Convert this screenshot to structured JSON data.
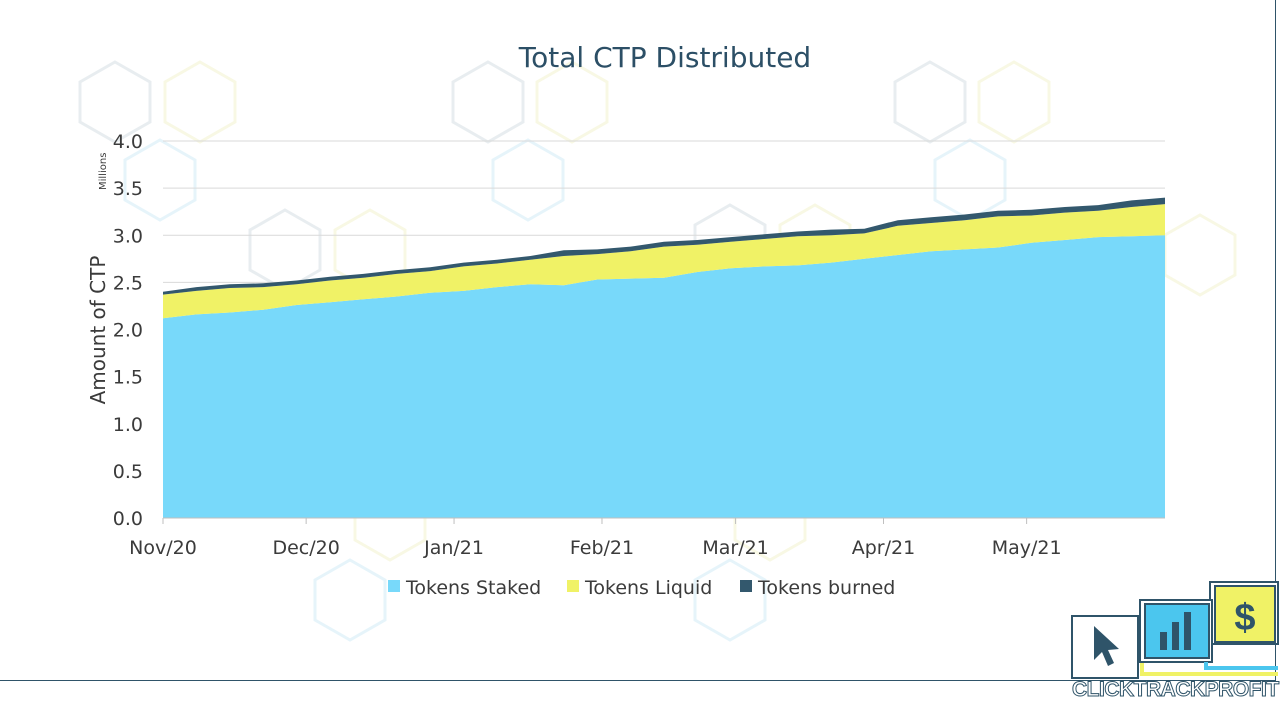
{
  "chart_data": {
    "type": "area",
    "title": "Total CTP Distributed",
    "ylabel": "Amount of CTP",
    "yunits": "Millions",
    "ylim": [
      0,
      4.0
    ],
    "yticks": [
      "0.0",
      "0.5",
      "1.0",
      "1.5",
      "2.0",
      "2.5",
      "3.0",
      "3.5",
      "4.0"
    ],
    "xticks": [
      "Nov/20",
      "Dec/20",
      "Jan/21",
      "Feb/21",
      "Mar/21",
      "Apr/21",
      "May/21"
    ],
    "stacked": true,
    "grid": true,
    "legend_position": "bottom",
    "x": [
      "2020-11-01",
      "2020-11-08",
      "2020-11-15",
      "2020-11-22",
      "2020-11-29",
      "2020-12-06",
      "2020-12-13",
      "2020-12-20",
      "2020-12-27",
      "2021-01-03",
      "2021-01-10",
      "2021-01-17",
      "2021-01-24",
      "2021-01-31",
      "2021-02-07",
      "2021-02-14",
      "2021-02-21",
      "2021-02-28",
      "2021-03-07",
      "2021-03-14",
      "2021-03-21",
      "2021-03-28",
      "2021-04-04",
      "2021-04-11",
      "2021-04-18",
      "2021-04-25",
      "2021-05-02",
      "2021-05-09",
      "2021-05-16",
      "2021-05-23",
      "2021-05-30"
    ],
    "series": [
      {
        "name": "Tokens Staked",
        "color": "#78d9fa",
        "values": [
          2.12,
          2.16,
          2.18,
          2.21,
          2.26,
          2.29,
          2.32,
          2.35,
          2.39,
          2.41,
          2.45,
          2.48,
          2.47,
          2.53,
          2.54,
          2.55,
          2.61,
          2.65,
          2.67,
          2.68,
          2.71,
          2.75,
          2.79,
          2.83,
          2.85,
          2.87,
          2.92,
          2.95,
          2.98,
          2.99,
          3.0
        ]
      },
      {
        "name": "Tokens Liquid",
        "color": "#f0f266",
        "values": [
          0.25,
          0.25,
          0.26,
          0.24,
          0.22,
          0.23,
          0.23,
          0.24,
          0.23,
          0.26,
          0.25,
          0.26,
          0.31,
          0.27,
          0.29,
          0.33,
          0.29,
          0.28,
          0.29,
          0.31,
          0.29,
          0.27,
          0.31,
          0.3,
          0.31,
          0.33,
          0.29,
          0.29,
          0.28,
          0.31,
          0.33
        ]
      },
      {
        "name": "Tokens burned",
        "color": "#33586d",
        "values": [
          0.03,
          0.04,
          0.04,
          0.04,
          0.04,
          0.04,
          0.04,
          0.04,
          0.04,
          0.04,
          0.04,
          0.04,
          0.06,
          0.05,
          0.05,
          0.05,
          0.05,
          0.05,
          0.05,
          0.05,
          0.06,
          0.05,
          0.06,
          0.06,
          0.06,
          0.06,
          0.06,
          0.06,
          0.06,
          0.07,
          0.07
        ]
      }
    ]
  },
  "logo": {
    "text": "CLICKTRACKPROFIT"
  }
}
